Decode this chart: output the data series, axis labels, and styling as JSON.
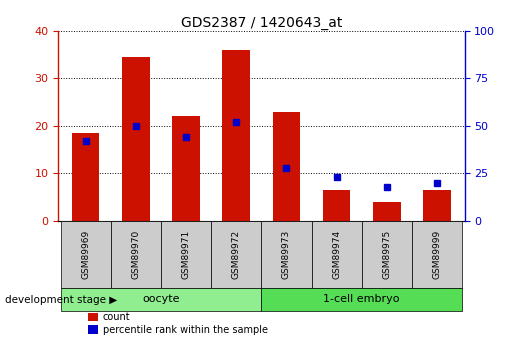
{
  "title": "GDS2387 / 1420643_at",
  "samples": [
    "GSM89969",
    "GSM89970",
    "GSM89971",
    "GSM89972",
    "GSM89973",
    "GSM89974",
    "GSM89975",
    "GSM89999"
  ],
  "counts": [
    18.5,
    34.5,
    22.0,
    36.0,
    23.0,
    6.5,
    4.0,
    6.5
  ],
  "percentiles": [
    42,
    50,
    44,
    52,
    28,
    23,
    18,
    20
  ],
  "ylim_left": [
    0,
    40
  ],
  "ylim_right": [
    0,
    100
  ],
  "yticks_left": [
    0,
    10,
    20,
    30,
    40
  ],
  "yticks_right": [
    0,
    25,
    50,
    75,
    100
  ],
  "groups": [
    {
      "label": "oocyte",
      "start": 0,
      "end": 4,
      "color": "#90ee90"
    },
    {
      "label": "1-cell embryo",
      "start": 4,
      "end": 8,
      "color": "#55dd55"
    }
  ],
  "bar_color": "#cc1100",
  "dot_color": "#0000cc",
  "bar_width": 0.55,
  "grid_color": "black",
  "bg_color": "#ffffff",
  "sample_box_color": "#cccccc",
  "legend_count_label": "count",
  "legend_percentile_label": "percentile rank within the sample",
  "dev_stage_label": "development stage",
  "left_axis_color": "#cc1100",
  "right_axis_color": "#0000cc",
  "title_fontsize": 10,
  "tick_fontsize": 8,
  "sample_fontsize": 6.5,
  "group_fontsize": 8
}
